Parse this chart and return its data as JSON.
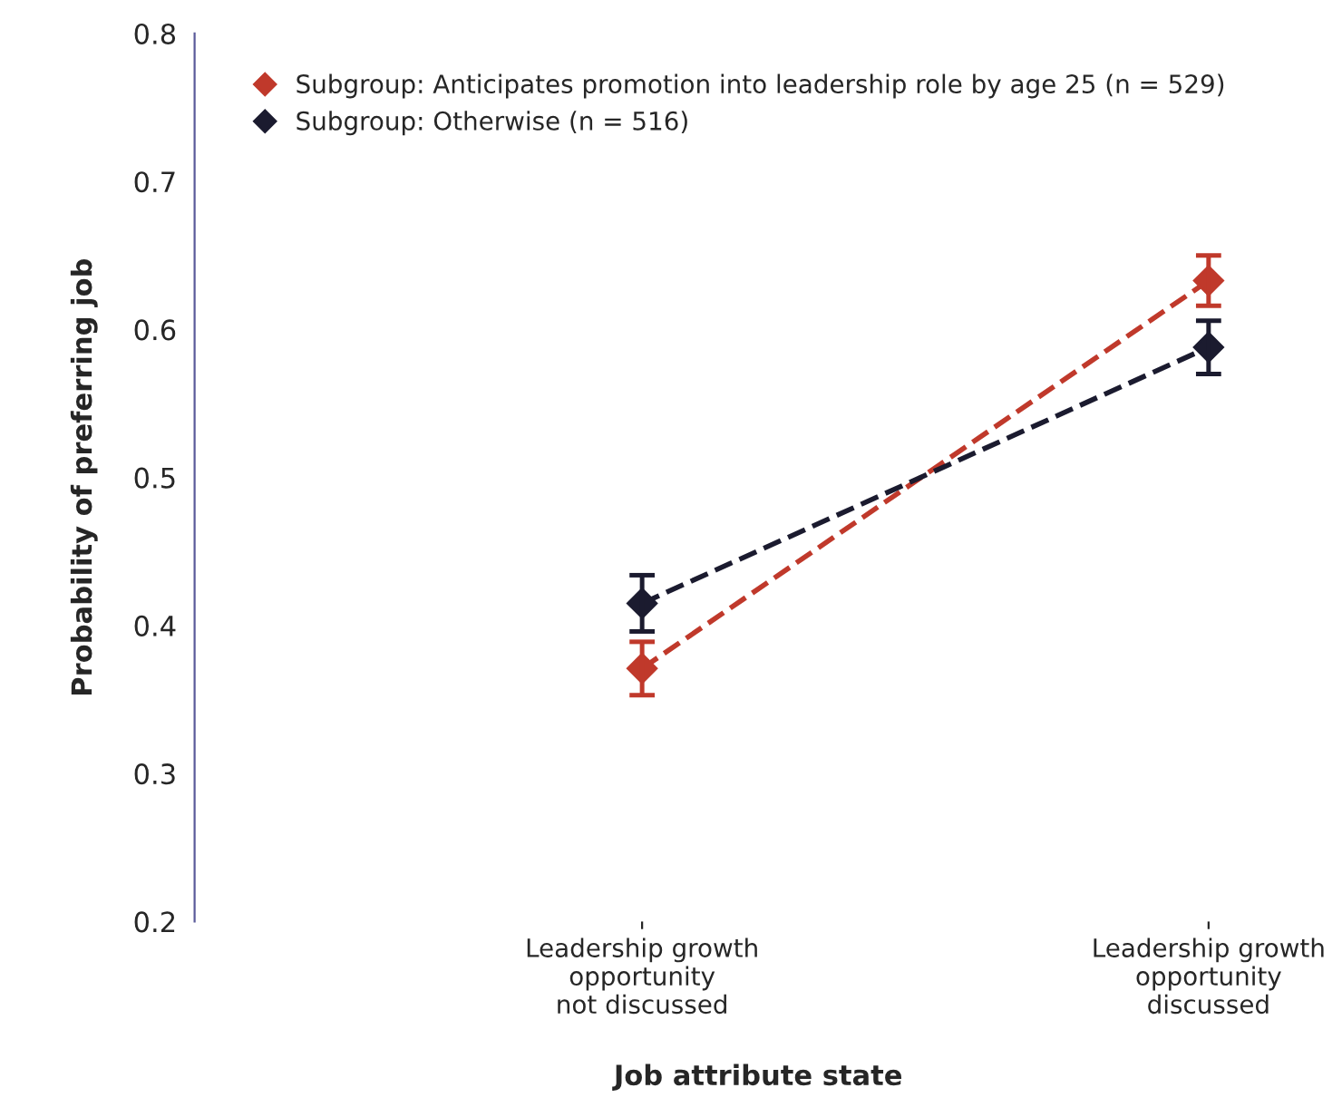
{
  "chart_data": {
    "type": "line",
    "xlabel": "Job attribute state",
    "ylabel": "Probability of preferring job",
    "categories": [
      "Leadership growth\nopportunity\nnot discussed",
      "Leadership growth\nopportunity\ndiscussed"
    ],
    "series": [
      {
        "name": "Subgroup: Anticipates promotion into leadership role by age 25 (n = 529)",
        "color": "#c0392b",
        "values": [
          0.371,
          0.633
        ],
        "errors": [
          0.018,
          0.017
        ]
      },
      {
        "name": "Subgroup: Otherwise (n = 516)",
        "color": "#1b1b2f",
        "values": [
          0.415,
          0.588
        ],
        "errors": [
          0.019,
          0.018
        ]
      }
    ],
    "ylim": [
      0.2,
      0.8
    ],
    "yticks": [
      0.2,
      0.3,
      0.4,
      0.5,
      0.6,
      0.7,
      0.8
    ],
    "grid": false,
    "legend": "top left",
    "marker": "diamond",
    "line_style": "dashed"
  }
}
